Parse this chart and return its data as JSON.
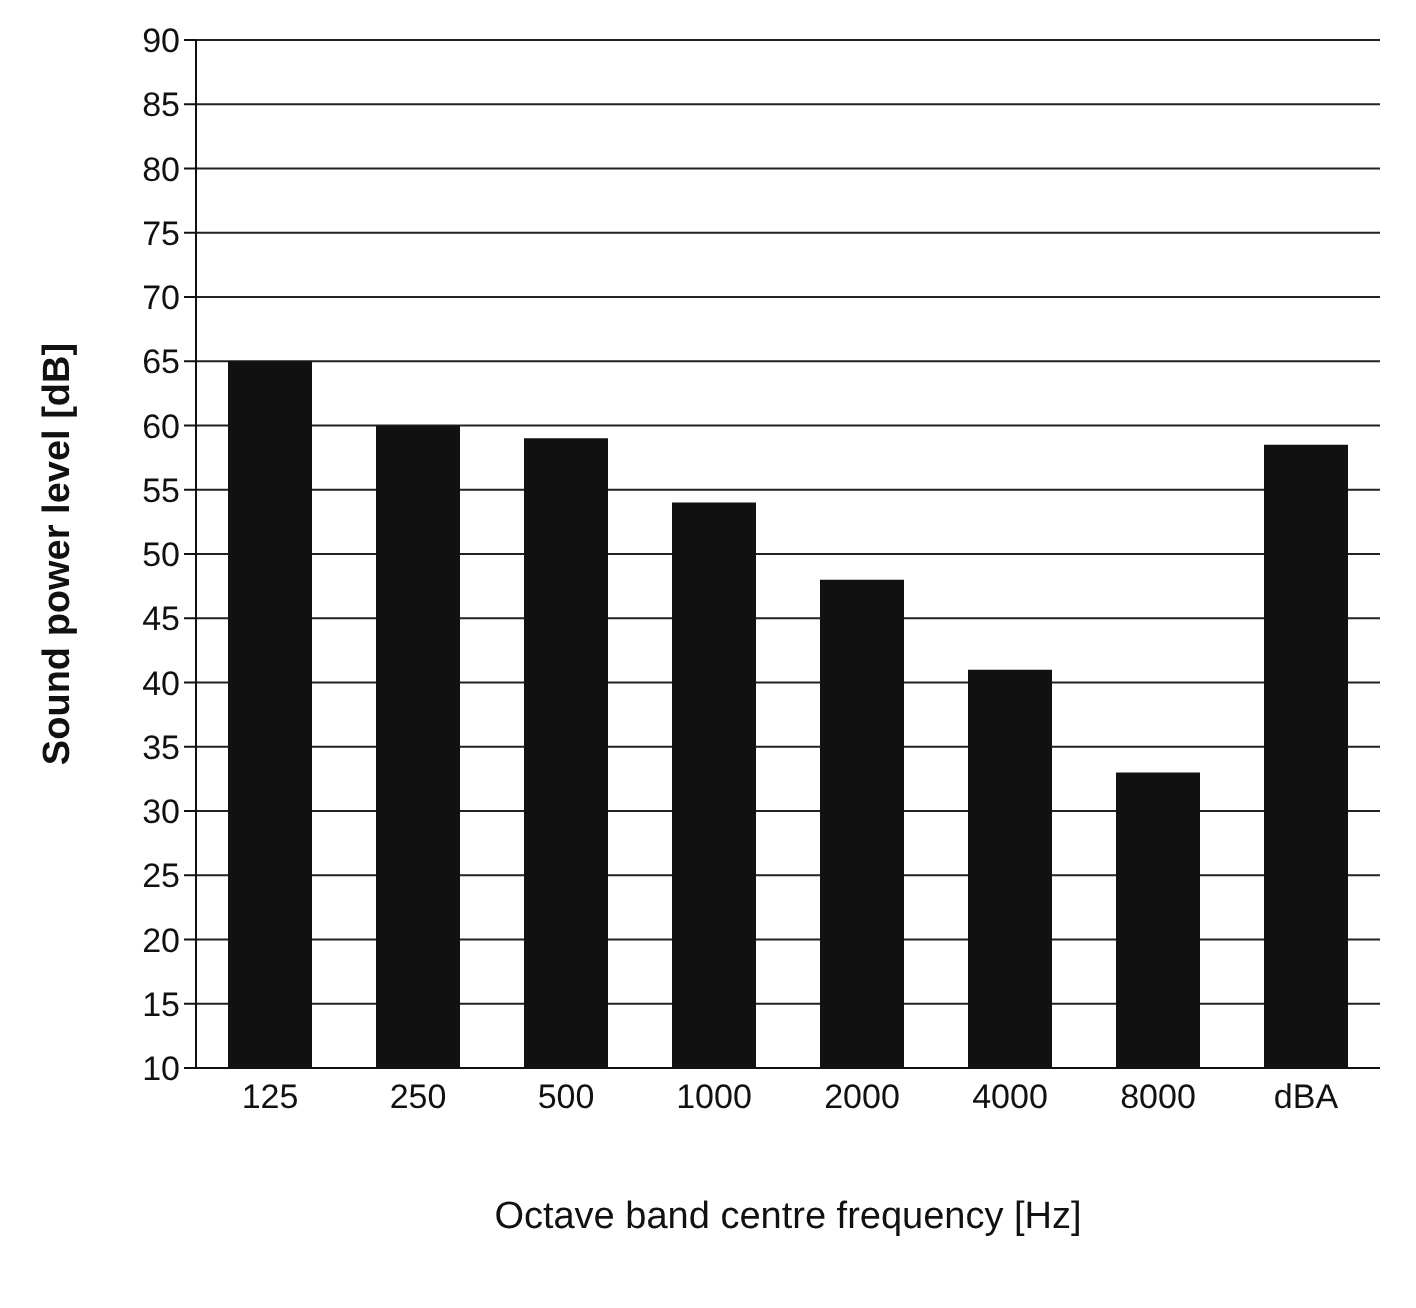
{
  "chart_data": {
    "type": "bar",
    "xlabel": "Octave band centre frequency [Hz]",
    "ylabel": "Sound power level [dB]",
    "categories": [
      "125",
      "250",
      "500",
      "1000",
      "2000",
      "4000",
      "8000",
      "dBA"
    ],
    "values": [
      65,
      60,
      59,
      54,
      48,
      41,
      33,
      58.5
    ],
    "color": "#111111",
    "ylim": [
      10,
      90
    ],
    "yticks": [
      10,
      15,
      20,
      25,
      30,
      35,
      40,
      45,
      50,
      55,
      60,
      65,
      70,
      75,
      80,
      85,
      90
    ],
    "grid": "y"
  }
}
